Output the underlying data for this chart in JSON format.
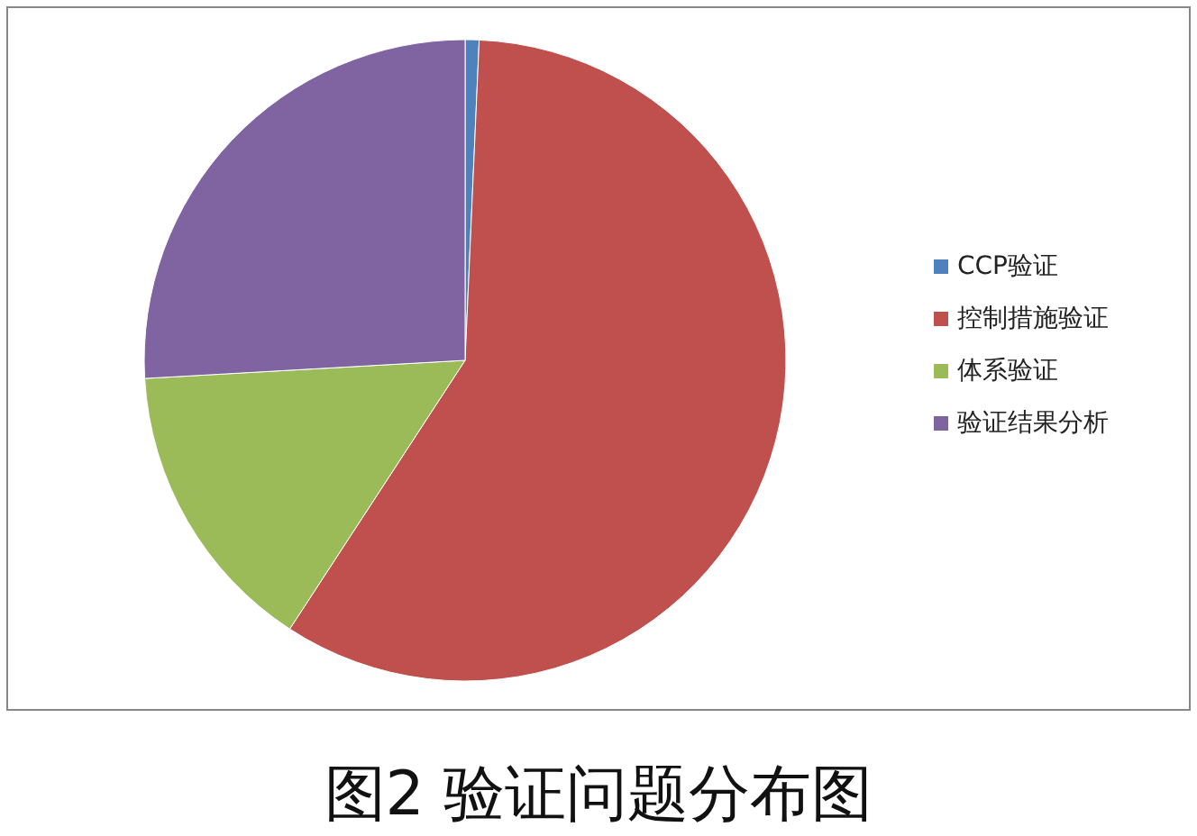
{
  "chart_data": {
    "type": "pie",
    "title": "图2  验证问题分布图",
    "categories": [
      "CCP验证",
      "控制措施验证",
      "体系验证",
      "验证结果分析"
    ],
    "values": [
      0.7,
      58.5,
      14.9,
      25.9
    ],
    "colors": [
      "#4f81bd",
      "#c0504d",
      "#9bbb59",
      "#8064a2"
    ],
    "legend": "right"
  }
}
